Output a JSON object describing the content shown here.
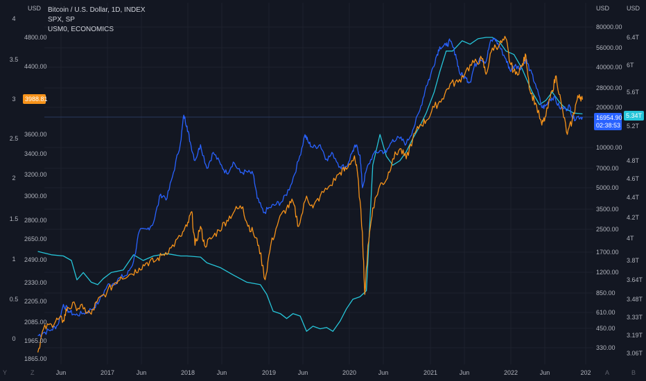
{
  "legend": {
    "btc": "Bitcoin / U.S. Dollar, 1D, INDEX",
    "spx": "SPX, SP",
    "usm0": "USM0, ECONOMICS"
  },
  "corners": {
    "bottom_left_1": "Y",
    "bottom_left_2": "Z",
    "bottom_right_1": "A",
    "bottom_right_2": "B"
  },
  "chart_data": {
    "type": "line",
    "x_tick_labels": [
      "Jun",
      "2017",
      "Jun",
      "2018",
      "Jun",
      "2019",
      "Jun",
      "2020",
      "Jun",
      "2021",
      "Jun",
      "2022",
      "Jun",
      "202"
    ],
    "x_tick_dates": [
      2016.42,
      2017.0,
      2017.42,
      2018.0,
      2018.42,
      2019.0,
      2019.42,
      2020.0,
      2020.42,
      2021.0,
      2021.42,
      2022.0,
      2022.42,
      2023.0
    ],
    "xlim": [
      2016.1,
      2023.05
    ],
    "axes": {
      "far_left": {
        "unit": "",
        "ticks": [
          "4",
          "3.5",
          "3",
          "2.5",
          "2",
          "1.5",
          "1",
          "0.5",
          "0"
        ],
        "tick_values": [
          4,
          3.5,
          3,
          2.5,
          2,
          1.5,
          1,
          0.5,
          0
        ],
        "range": [
          0,
          4
        ]
      },
      "left": {
        "unit": "USD",
        "ticks": [
          "4800.00",
          "4400.00",
          "3600.00",
          "3400.00",
          "3200.00",
          "3000.00",
          "2800.00",
          "2650.00",
          "2490.00",
          "2330.00",
          "2205.00",
          "2085.00",
          "1965.00",
          "1865.00"
        ],
        "tick_values": [
          4800,
          4400,
          3600,
          3400,
          3200,
          3000,
          2800,
          2650,
          2490,
          2330,
          2205,
          2085,
          1965,
          1865
        ],
        "scale": "log"
      },
      "right": {
        "unit": "USD",
        "ticks": [
          "80000.00",
          "56000.00",
          "40000.00",
          "28000.00",
          "20000.00",
          "10000.00",
          "7000.00",
          "5000.00",
          "3500.00",
          "2500.00",
          "1700.00",
          "1200.00",
          "850.00",
          "610.00",
          "450.00",
          "330.00"
        ],
        "tick_values": [
          80000,
          56000,
          40000,
          28000,
          20000,
          10000,
          7000,
          5000,
          3500,
          2500,
          1700,
          1200,
          850,
          610,
          450,
          330
        ],
        "scale": "log"
      },
      "far_right": {
        "unit": "USD",
        "ticks": [
          "6.4T",
          "6T",
          "5.6T",
          "5.2T",
          "4.8T",
          "4.6T",
          "4.4T",
          "4.2T",
          "4T",
          "3.8T",
          "3.64T",
          "3.48T",
          "3.33T",
          "3.19T",
          "3.06T"
        ],
        "tick_values": [
          6.4,
          6.0,
          5.6,
          5.2,
          4.8,
          4.6,
          4.4,
          4.2,
          4.0,
          3.8,
          3.64,
          3.48,
          3.33,
          3.19,
          3.06
        ],
        "scale": "log"
      }
    },
    "badges": {
      "spx": "3988.81",
      "btc_price": "16954.90",
      "btc_countdown": "02:38:53",
      "usm0": "5.34T"
    },
    "series": [
      {
        "name": "Bitcoin / U.S. Dollar",
        "axis": "right",
        "color": "#2962ff",
        "points": [
          [
            2016.13,
            400
          ],
          [
            2016.2,
            420
          ],
          [
            2016.3,
            440
          ],
          [
            2016.38,
            480
          ],
          [
            2016.45,
            700
          ],
          [
            2016.52,
            620
          ],
          [
            2016.6,
            580
          ],
          [
            2016.7,
            600
          ],
          [
            2016.8,
            640
          ],
          [
            2016.9,
            740
          ],
          [
            2017.0,
            960
          ],
          [
            2017.08,
            1000
          ],
          [
            2017.17,
            1100
          ],
          [
            2017.25,
            1150
          ],
          [
            2017.33,
            1450
          ],
          [
            2017.4,
            2400
          ],
          [
            2017.5,
            2500
          ],
          [
            2017.58,
            2800
          ],
          [
            2017.67,
            4500
          ],
          [
            2017.75,
            4200
          ],
          [
            2017.83,
            6500
          ],
          [
            2017.92,
            11000
          ],
          [
            2017.96,
            17500
          ],
          [
            2018.0,
            14500
          ],
          [
            2018.04,
            11000
          ],
          [
            2018.1,
            8000
          ],
          [
            2018.17,
            10500
          ],
          [
            2018.25,
            7000
          ],
          [
            2018.33,
            9200
          ],
          [
            2018.42,
            7500
          ],
          [
            2018.5,
            6400
          ],
          [
            2018.58,
            7800
          ],
          [
            2018.67,
            6500
          ],
          [
            2018.75,
            6600
          ],
          [
            2018.83,
            6300
          ],
          [
            2018.88,
            4200
          ],
          [
            2018.96,
            3300
          ],
          [
            2019.04,
            3600
          ],
          [
            2019.12,
            3800
          ],
          [
            2019.2,
            4000
          ],
          [
            2019.3,
            5200
          ],
          [
            2019.4,
            8000
          ],
          [
            2019.48,
            12500
          ],
          [
            2019.52,
            11000
          ],
          [
            2019.58,
            10000
          ],
          [
            2019.67,
            10500
          ],
          [
            2019.75,
            8200
          ],
          [
            2019.83,
            9000
          ],
          [
            2019.92,
            7200
          ],
          [
            2020.0,
            7200
          ],
          [
            2020.08,
            9500
          ],
          [
            2020.12,
            10300
          ],
          [
            2020.17,
            8800
          ],
          [
            2020.2,
            5000
          ],
          [
            2020.25,
            6800
          ],
          [
            2020.33,
            8800
          ],
          [
            2020.42,
            9500
          ],
          [
            2020.5,
            9200
          ],
          [
            2020.58,
            11500
          ],
          [
            2020.67,
            11700
          ],
          [
            2020.75,
            10700
          ],
          [
            2020.83,
            13500
          ],
          [
            2020.92,
            19000
          ],
          [
            2021.0,
            29000
          ],
          [
            2021.05,
            34000
          ],
          [
            2021.12,
            47000
          ],
          [
            2021.17,
            57000
          ],
          [
            2021.25,
            58000
          ],
          [
            2021.3,
            63000
          ],
          [
            2021.37,
            50000
          ],
          [
            2021.42,
            36000
          ],
          [
            2021.5,
            33000
          ],
          [
            2021.55,
            31000
          ],
          [
            2021.6,
            40000
          ],
          [
            2021.67,
            47000
          ],
          [
            2021.75,
            44000
          ],
          [
            2021.8,
            61000
          ],
          [
            2021.86,
            66000
          ],
          [
            2021.92,
            57000
          ],
          [
            2022.0,
            46000
          ],
          [
            2022.05,
            38000
          ],
          [
            2022.12,
            42000
          ],
          [
            2022.17,
            39000
          ],
          [
            2022.25,
            46000
          ],
          [
            2022.3,
            38000
          ],
          [
            2022.37,
            30000
          ],
          [
            2022.45,
            20000
          ],
          [
            2022.5,
            20500
          ],
          [
            2022.55,
            23000
          ],
          [
            2022.6,
            24000
          ],
          [
            2022.67,
            20000
          ],
          [
            2022.75,
            19500
          ],
          [
            2022.8,
            20400
          ],
          [
            2022.84,
            16500
          ],
          [
            2022.9,
            17000
          ],
          [
            2022.96,
            16954.9
          ]
        ]
      },
      {
        "name": "SPX",
        "axis": "left",
        "color": "#f7931a",
        "points": [
          [
            2016.13,
            1900
          ],
          [
            2016.2,
            2040
          ],
          [
            2016.3,
            2070
          ],
          [
            2016.38,
            2100
          ],
          [
            2016.45,
            2095
          ],
          [
            2016.5,
            2170
          ],
          [
            2016.6,
            2180
          ],
          [
            2016.7,
            2160
          ],
          [
            2016.8,
            2130
          ],
          [
            2016.87,
            2200
          ],
          [
            2017.0,
            2270
          ],
          [
            2017.1,
            2330
          ],
          [
            2017.17,
            2370
          ],
          [
            2017.3,
            2390
          ],
          [
            2017.4,
            2430
          ],
          [
            2017.5,
            2470
          ],
          [
            2017.6,
            2480
          ],
          [
            2017.7,
            2530
          ],
          [
            2017.8,
            2580
          ],
          [
            2017.92,
            2670
          ],
          [
            2018.0,
            2750
          ],
          [
            2018.06,
            2870
          ],
          [
            2018.1,
            2600
          ],
          [
            2018.17,
            2750
          ],
          [
            2018.22,
            2600
          ],
          [
            2018.3,
            2650
          ],
          [
            2018.4,
            2720
          ],
          [
            2018.5,
            2800
          ],
          [
            2018.6,
            2880
          ],
          [
            2018.7,
            2910
          ],
          [
            2018.75,
            2780
          ],
          [
            2018.83,
            2700
          ],
          [
            2018.9,
            2600
          ],
          [
            2018.98,
            2350
          ],
          [
            2019.05,
            2600
          ],
          [
            2019.15,
            2800
          ],
          [
            2019.25,
            2900
          ],
          [
            2019.33,
            2950
          ],
          [
            2019.4,
            2750
          ],
          [
            2019.5,
            3000
          ],
          [
            2019.58,
            2900
          ],
          [
            2019.67,
            3000
          ],
          [
            2019.8,
            3100
          ],
          [
            2019.92,
            3220
          ],
          [
            2020.0,
            3250
          ],
          [
            2020.1,
            3380
          ],
          [
            2020.14,
            3200
          ],
          [
            2020.2,
            2700
          ],
          [
            2020.23,
            2250
          ],
          [
            2020.27,
            2600
          ],
          [
            2020.33,
            2900
          ],
          [
            2020.42,
            3100
          ],
          [
            2020.5,
            3150
          ],
          [
            2020.58,
            3350
          ],
          [
            2020.67,
            3450
          ],
          [
            2020.75,
            3350
          ],
          [
            2020.83,
            3550
          ],
          [
            2020.92,
            3700
          ],
          [
            2021.0,
            3750
          ],
          [
            2021.1,
            3900
          ],
          [
            2021.2,
            4000
          ],
          [
            2021.3,
            4180
          ],
          [
            2021.4,
            4200
          ],
          [
            2021.5,
            4350
          ],
          [
            2021.6,
            4450
          ],
          [
            2021.7,
            4500
          ],
          [
            2021.75,
            4300
          ],
          [
            2021.83,
            4650
          ],
          [
            2021.92,
            4700
          ],
          [
            2022.0,
            4780
          ],
          [
            2022.05,
            4450
          ],
          [
            2022.12,
            4300
          ],
          [
            2022.2,
            4400
          ],
          [
            2022.25,
            4550
          ],
          [
            2022.3,
            4100
          ],
          [
            2022.37,
            3950
          ],
          [
            2022.45,
            3700
          ],
          [
            2022.5,
            3800
          ],
          [
            2022.58,
            4100
          ],
          [
            2022.63,
            4280
          ],
          [
            2022.7,
            3900
          ],
          [
            2022.77,
            3600
          ],
          [
            2022.83,
            3750
          ],
          [
            2022.88,
            3950
          ],
          [
            2022.92,
            4050
          ],
          [
            2022.96,
            3988.81
          ]
        ]
      },
      {
        "name": "USM0",
        "axis": "far_right",
        "color": "#26c6da",
        "points": [
          [
            2016.13,
            3.88
          ],
          [
            2016.3,
            3.85
          ],
          [
            2016.45,
            3.84
          ],
          [
            2016.55,
            3.8
          ],
          [
            2016.62,
            3.64
          ],
          [
            2016.7,
            3.7
          ],
          [
            2016.8,
            3.62
          ],
          [
            2016.88,
            3.6
          ],
          [
            2016.95,
            3.65
          ],
          [
            2017.05,
            3.7
          ],
          [
            2017.2,
            3.72
          ],
          [
            2017.33,
            3.85
          ],
          [
            2017.45,
            3.8
          ],
          [
            2017.58,
            3.84
          ],
          [
            2017.75,
            3.86
          ],
          [
            2017.92,
            3.84
          ],
          [
            2018.0,
            3.84
          ],
          [
            2018.17,
            3.83
          ],
          [
            2018.25,
            3.78
          ],
          [
            2018.42,
            3.74
          ],
          [
            2018.58,
            3.68
          ],
          [
            2018.75,
            3.62
          ],
          [
            2018.92,
            3.6
          ],
          [
            2019.0,
            3.52
          ],
          [
            2019.08,
            3.38
          ],
          [
            2019.17,
            3.36
          ],
          [
            2019.25,
            3.32
          ],
          [
            2019.33,
            3.36
          ],
          [
            2019.42,
            3.34
          ],
          [
            2019.5,
            3.22
          ],
          [
            2019.58,
            3.26
          ],
          [
            2019.67,
            3.24
          ],
          [
            2019.75,
            3.25
          ],
          [
            2019.83,
            3.22
          ],
          [
            2019.92,
            3.3
          ],
          [
            2020.0,
            3.4
          ],
          [
            2020.08,
            3.48
          ],
          [
            2020.17,
            3.5
          ],
          [
            2020.25,
            3.55
          ],
          [
            2020.33,
            4.75
          ],
          [
            2020.42,
            5.1
          ],
          [
            2020.5,
            4.85
          ],
          [
            2020.58,
            4.75
          ],
          [
            2020.67,
            4.8
          ],
          [
            2020.75,
            4.9
          ],
          [
            2020.83,
            5.05
          ],
          [
            2020.92,
            5.2
          ],
          [
            2021.0,
            5.35
          ],
          [
            2021.1,
            5.6
          ],
          [
            2021.17,
            5.9
          ],
          [
            2021.25,
            6.2
          ],
          [
            2021.33,
            6.2
          ],
          [
            2021.45,
            6.35
          ],
          [
            2021.55,
            6.3
          ],
          [
            2021.65,
            6.38
          ],
          [
            2021.75,
            6.4
          ],
          [
            2021.83,
            6.4
          ],
          [
            2021.92,
            6.33
          ],
          [
            2022.0,
            6.2
          ],
          [
            2022.1,
            6.15
          ],
          [
            2022.2,
            5.95
          ],
          [
            2022.33,
            5.6
          ],
          [
            2022.42,
            5.45
          ],
          [
            2022.5,
            5.5
          ],
          [
            2022.58,
            5.6
          ],
          [
            2022.67,
            5.48
          ],
          [
            2022.75,
            5.4
          ],
          [
            2022.85,
            5.35
          ],
          [
            2022.96,
            5.34
          ]
        ]
      }
    ]
  }
}
